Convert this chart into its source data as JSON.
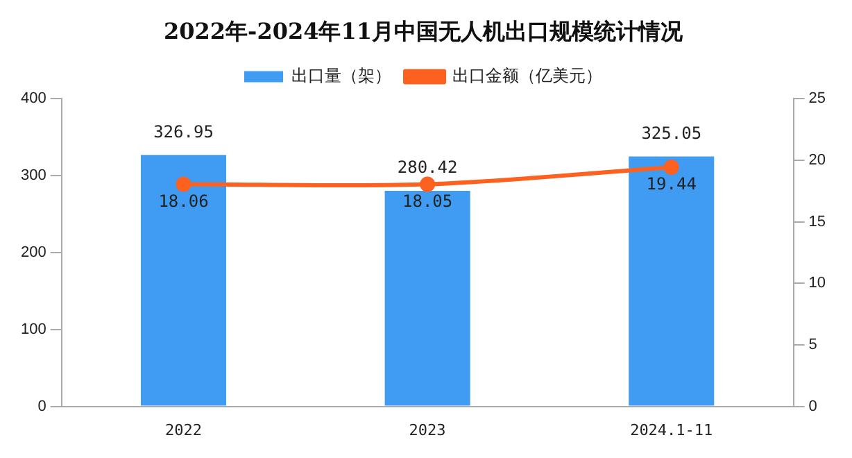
{
  "chart_data": {
    "type": "bar",
    "title": "2022年-2024年11月中国无人机出口规模统计情况",
    "categories": [
      "2022",
      "2023",
      "2024.1-11"
    ],
    "series": [
      {
        "name": "出口量（架）",
        "color": "#3f9cf2",
        "values": [
          326.95,
          280.42,
          325.05
        ]
      },
      {
        "name": "出口金额（亿美元）",
        "type": "line",
        "axis": "y2",
        "color": "#fd6120",
        "values": [
          18.06,
          18.05,
          19.44
        ]
      }
    ],
    "ylim": [
      0,
      400
    ],
    "yticks": [
      0,
      100,
      200,
      300,
      400
    ],
    "y2lim": [
      0,
      25
    ],
    "y2ticks": [
      0,
      5,
      10,
      15,
      20,
      25
    ],
    "data_labels": true,
    "grid": false,
    "legend": "top",
    "marker": "circle",
    "line_style": "solid"
  }
}
